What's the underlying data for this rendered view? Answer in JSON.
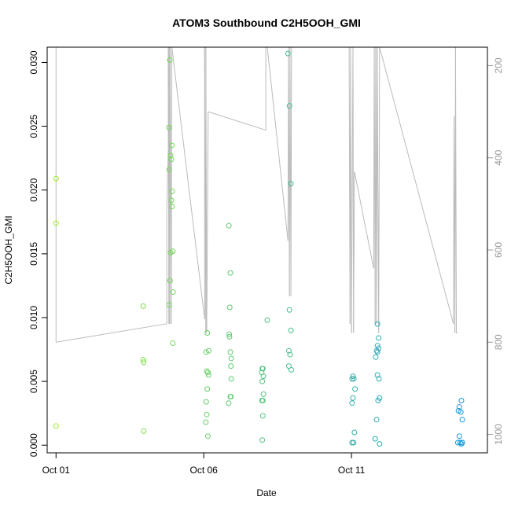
{
  "chart_data": {
    "type": "scatter",
    "title": "ATOM3 Southbound C2H5OOH_GMI",
    "xlabel": "Date",
    "ylabel": "C2H5OOH_GMI",
    "x_unit": "days since Oct 01",
    "xlim": [
      -0.3,
      14.6
    ],
    "ylim": [
      -0.0006,
      0.0312
    ],
    "x_ticks": [
      {
        "value": 0,
        "label": "Oct 01"
      },
      {
        "value": 5,
        "label": "Oct 06"
      },
      {
        "value": 10,
        "label": "Oct 11"
      }
    ],
    "y_ticks": [
      {
        "value": 0.0,
        "label": "0.000"
      },
      {
        "value": 0.005,
        "label": "0.005"
      },
      {
        "value": 0.01,
        "label": "0.010"
      },
      {
        "value": 0.015,
        "label": "0.015"
      },
      {
        "value": 0.02,
        "label": "0.020"
      },
      {
        "value": 0.025,
        "label": "0.025"
      },
      {
        "value": 0.03,
        "label": "0.030"
      }
    ],
    "y2lim": [
      1040,
      160
    ],
    "y2_ticks": [
      {
        "value": 200,
        "label": "200"
      },
      {
        "value": 400,
        "label": "400"
      },
      {
        "value": 600,
        "label": "600"
      },
      {
        "value": 800,
        "label": "800"
      },
      {
        "value": 1000,
        "label": "1000"
      }
    ],
    "colors": {
      "axis": "#000000",
      "pressure_line": "#bbbbbb",
      "secondary_axis": "#999999",
      "point_start": "#99ee22",
      "point_end": "#1199dd"
    },
    "points": [
      [
        0.0,
        0.0209
      ],
      [
        0.0,
        0.0174
      ],
      [
        0.0,
        0.0015
      ],
      [
        2.95,
        0.0109
      ],
      [
        2.95,
        0.0067
      ],
      [
        2.97,
        0.0065
      ],
      [
        2.97,
        0.0011
      ],
      [
        3.85,
        0.0302
      ],
      [
        3.82,
        0.0249
      ],
      [
        3.88,
        0.0227
      ],
      [
        3.9,
        0.0224
      ],
      [
        3.83,
        0.0216
      ],
      [
        3.92,
        0.0235
      ],
      [
        3.93,
        0.0199
      ],
      [
        3.9,
        0.0192
      ],
      [
        3.92,
        0.0187
      ],
      [
        3.88,
        0.0151
      ],
      [
        3.95,
        0.0152
      ],
      [
        3.86,
        0.0129
      ],
      [
        3.96,
        0.012
      ],
      [
        3.83,
        0.011
      ],
      [
        3.95,
        0.008
      ],
      [
        5.12,
        0.0088
      ],
      [
        5.08,
        0.0073
      ],
      [
        5.17,
        0.0074
      ],
      [
        5.1,
        0.0058
      ],
      [
        5.14,
        0.0057
      ],
      [
        5.16,
        0.0055
      ],
      [
        5.12,
        0.0044
      ],
      [
        5.08,
        0.0034
      ],
      [
        5.1,
        0.0024
      ],
      [
        5.07,
        0.0018
      ],
      [
        5.14,
        0.0007
      ],
      [
        5.85,
        0.0172
      ],
      [
        5.9,
        0.0135
      ],
      [
        5.88,
        0.0108
      ],
      [
        5.86,
        0.0087
      ],
      [
        5.87,
        0.0085
      ],
      [
        5.9,
        0.0073
      ],
      [
        5.93,
        0.0068
      ],
      [
        5.92,
        0.0062
      ],
      [
        5.93,
        0.0052
      ],
      [
        5.9,
        0.0038
      ],
      [
        5.92,
        0.0038
      ],
      [
        5.84,
        0.0033
      ],
      [
        6.98,
        0.006
      ],
      [
        7.0,
        0.006
      ],
      [
        6.96,
        0.0057
      ],
      [
        7.02,
        0.0054
      ],
      [
        6.98,
        0.005
      ],
      [
        7.02,
        0.004
      ],
      [
        6.97,
        0.0035
      ],
      [
        7.0,
        0.0035
      ],
      [
        7.0,
        0.0023
      ],
      [
        6.98,
        0.0004
      ],
      [
        7.15,
        0.0098
      ],
      [
        7.85,
        0.0307
      ],
      [
        7.9,
        0.0266
      ],
      [
        7.95,
        0.0205
      ],
      [
        7.9,
        0.0106
      ],
      [
        7.95,
        0.009
      ],
      [
        7.88,
        0.0074
      ],
      [
        7.92,
        0.0071
      ],
      [
        7.88,
        0.0062
      ],
      [
        7.96,
        0.0059
      ],
      [
        10.05,
        0.0054
      ],
      [
        10.08,
        0.0052
      ],
      [
        10.02,
        0.0052
      ],
      [
        10.12,
        0.0044
      ],
      [
        10.05,
        0.0037
      ],
      [
        10.02,
        0.0033
      ],
      [
        10.1,
        0.001
      ],
      [
        10.02,
        0.0002
      ],
      [
        10.07,
        0.0002
      ],
      [
        10.88,
        0.0095
      ],
      [
        10.92,
        0.0084
      ],
      [
        10.88,
        0.0078
      ],
      [
        10.92,
        0.0076
      ],
      [
        10.85,
        0.0074
      ],
      [
        10.88,
        0.0073
      ],
      [
        10.82,
        0.0069
      ],
      [
        10.88,
        0.0055
      ],
      [
        10.93,
        0.0052
      ],
      [
        10.95,
        0.0037
      ],
      [
        10.9,
        0.0035
      ],
      [
        10.85,
        0.002
      ],
      [
        10.8,
        0.0005
      ],
      [
        10.95,
        0.0001
      ],
      [
        13.65,
        0.003
      ],
      [
        13.72,
        0.0035
      ],
      [
        13.62,
        0.0027
      ],
      [
        13.7,
        0.0026
      ],
      [
        13.75,
        0.002
      ],
      [
        13.65,
        0.0007
      ],
      [
        13.6,
        0.0002
      ],
      [
        13.68,
        0.0002
      ],
      [
        13.75,
        0.0002
      ],
      [
        13.72,
        0.0001
      ]
    ],
    "pressure_series": [
      [
        0.0,
        160
      ],
      [
        0.0,
        800
      ],
      [
        3.75,
        760
      ],
      [
        3.75,
        510
      ],
      [
        3.8,
        380
      ],
      [
        3.8,
        160
      ],
      [
        3.82,
        760
      ],
      [
        3.83,
        160
      ],
      [
        3.85,
        760
      ],
      [
        3.86,
        160
      ],
      [
        3.9,
        760
      ],
      [
        3.92,
        160
      ],
      [
        5.03,
        750
      ],
      [
        5.03,
        160
      ],
      [
        5.07,
        780
      ],
      [
        5.07,
        160
      ],
      [
        5.1,
        780
      ],
      [
        5.15,
        300
      ],
      [
        7.1,
        340
      ],
      [
        7.1,
        160
      ],
      [
        7.15,
        160
      ],
      [
        7.85,
        580
      ],
      [
        7.87,
        160
      ],
      [
        7.9,
        700
      ],
      [
        7.92,
        160
      ],
      [
        7.95,
        700
      ],
      [
        7.97,
        160
      ],
      [
        9.92,
        160
      ],
      [
        9.95,
        760
      ],
      [
        9.97,
        160
      ],
      [
        10.0,
        780
      ],
      [
        10.05,
        160
      ],
      [
        10.07,
        780
      ],
      [
        10.1,
        430
      ],
      [
        10.75,
        640
      ],
      [
        10.77,
        160
      ],
      [
        10.8,
        760
      ],
      [
        10.82,
        160
      ],
      [
        10.85,
        760
      ],
      [
        10.87,
        160
      ],
      [
        10.92,
        780
      ],
      [
        10.95,
        160
      ],
      [
        13.45,
        760
      ],
      [
        13.47,
        310
      ],
      [
        13.5,
        780
      ],
      [
        13.52,
        160
      ],
      [
        13.55,
        780
      ],
      [
        13.6,
        780
      ]
    ]
  }
}
